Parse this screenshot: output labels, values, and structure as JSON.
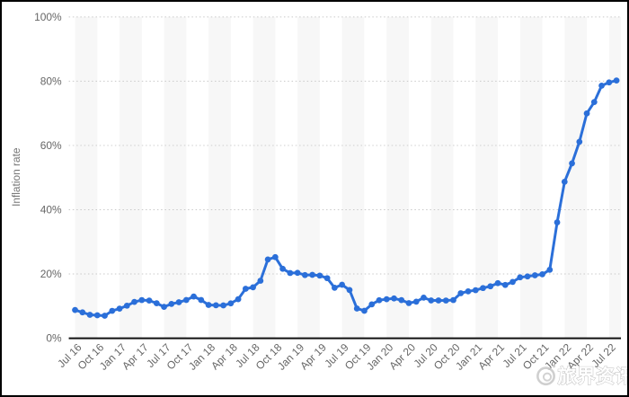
{
  "chart_data": {
    "type": "line",
    "title": "",
    "xlabel": "",
    "ylabel": "Inflation rate",
    "ylim": [
      0,
      100
    ],
    "y_ticks": [
      0,
      20,
      40,
      60,
      80,
      100
    ],
    "y_tick_labels": [
      "0%",
      "20%",
      "40%",
      "60%",
      "80%",
      "100%"
    ],
    "grid": "dotted-horizontal",
    "legend": "none",
    "marker": "circle",
    "x_tick_every_n_points": 3,
    "x_tick_labels": [
      "Jul 16",
      "Oct 16",
      "Jan 17",
      "Apr 17",
      "Jul 17",
      "Oct 17",
      "Jan 18",
      "Apr 18",
      "Jul 18",
      "Oct 18",
      "Jan 19",
      "Apr 19",
      "Jul 19",
      "Oct 19",
      "Jan 20",
      "Apr 20",
      "Jul 20",
      "Oct 20",
      "Jan 21",
      "Apr 21",
      "Jul 21",
      "Oct 21",
      "Jan 22",
      "Apr 22",
      "Jul 22"
    ],
    "x": [
      "Jul 16",
      "Aug 16",
      "Sep 16",
      "Oct 16",
      "Nov 16",
      "Dec 16",
      "Jan 17",
      "Feb 17",
      "Mar 17",
      "Apr 17",
      "May 17",
      "Jun 17",
      "Jul 17",
      "Aug 17",
      "Sep 17",
      "Oct 17",
      "Nov 17",
      "Dec 17",
      "Jan 18",
      "Feb 18",
      "Mar 18",
      "Apr 18",
      "May 18",
      "Jun 18",
      "Jul 18",
      "Aug 18",
      "Sep 18",
      "Oct 18",
      "Nov 18",
      "Dec 18",
      "Jan 19",
      "Feb 19",
      "Mar 19",
      "Apr 19",
      "May 19",
      "Jun 19",
      "Jul 19",
      "Aug 19",
      "Sep 19",
      "Oct 19",
      "Nov 19",
      "Dec 19",
      "Jan 20",
      "Feb 20",
      "Mar 20",
      "Apr 20",
      "May 20",
      "Jun 20",
      "Jul 20",
      "Aug 20",
      "Sep 20",
      "Oct 20",
      "Nov 20",
      "Dec 20",
      "Jan 21",
      "Feb 21",
      "Mar 21",
      "Apr 21",
      "May 21",
      "Jun 21",
      "Jul 21",
      "Aug 21",
      "Sep 21",
      "Oct 21",
      "Nov 21",
      "Dec 21",
      "Jan 22",
      "Feb 22",
      "Mar 22",
      "Apr 22",
      "May 22",
      "Jun 22",
      "Jul 22",
      "Aug 22"
    ],
    "series": [
      {
        "name": "Inflation rate",
        "values": [
          8.79,
          8.05,
          7.28,
          7.16,
          7.0,
          8.53,
          9.22,
          10.13,
          11.29,
          11.87,
          11.72,
          10.9,
          9.79,
          10.68,
          11.2,
          11.9,
          12.98,
          11.92,
          10.35,
          10.26,
          10.23,
          10.85,
          12.15,
          15.39,
          15.85,
          17.9,
          24.52,
          25.24,
          21.62,
          20.3,
          20.35,
          19.67,
          19.71,
          19.5,
          18.71,
          15.72,
          16.65,
          15.01,
          9.26,
          8.55,
          10.56,
          11.84,
          12.15,
          12.37,
          11.86,
          10.94,
          11.39,
          12.62,
          11.76,
          11.77,
          11.75,
          11.89,
          14.03,
          14.6,
          14.97,
          15.61,
          16.19,
          17.14,
          16.59,
          17.53,
          18.95,
          19.25,
          19.58,
          19.89,
          21.31,
          36.08,
          48.69,
          54.44,
          61.14,
          69.97,
          73.5,
          78.62,
          79.6,
          80.21
        ]
      }
    ],
    "colors": {
      "line": "#2b6fd9",
      "band": "#f7f7f7",
      "grid": "#c9c9c9",
      "axis": "#111111",
      "tick_text": "#666666",
      "axis_title": "#757575"
    }
  },
  "watermark": {
    "logo": "weibo-eye-logo",
    "text": "旅界资讯"
  }
}
